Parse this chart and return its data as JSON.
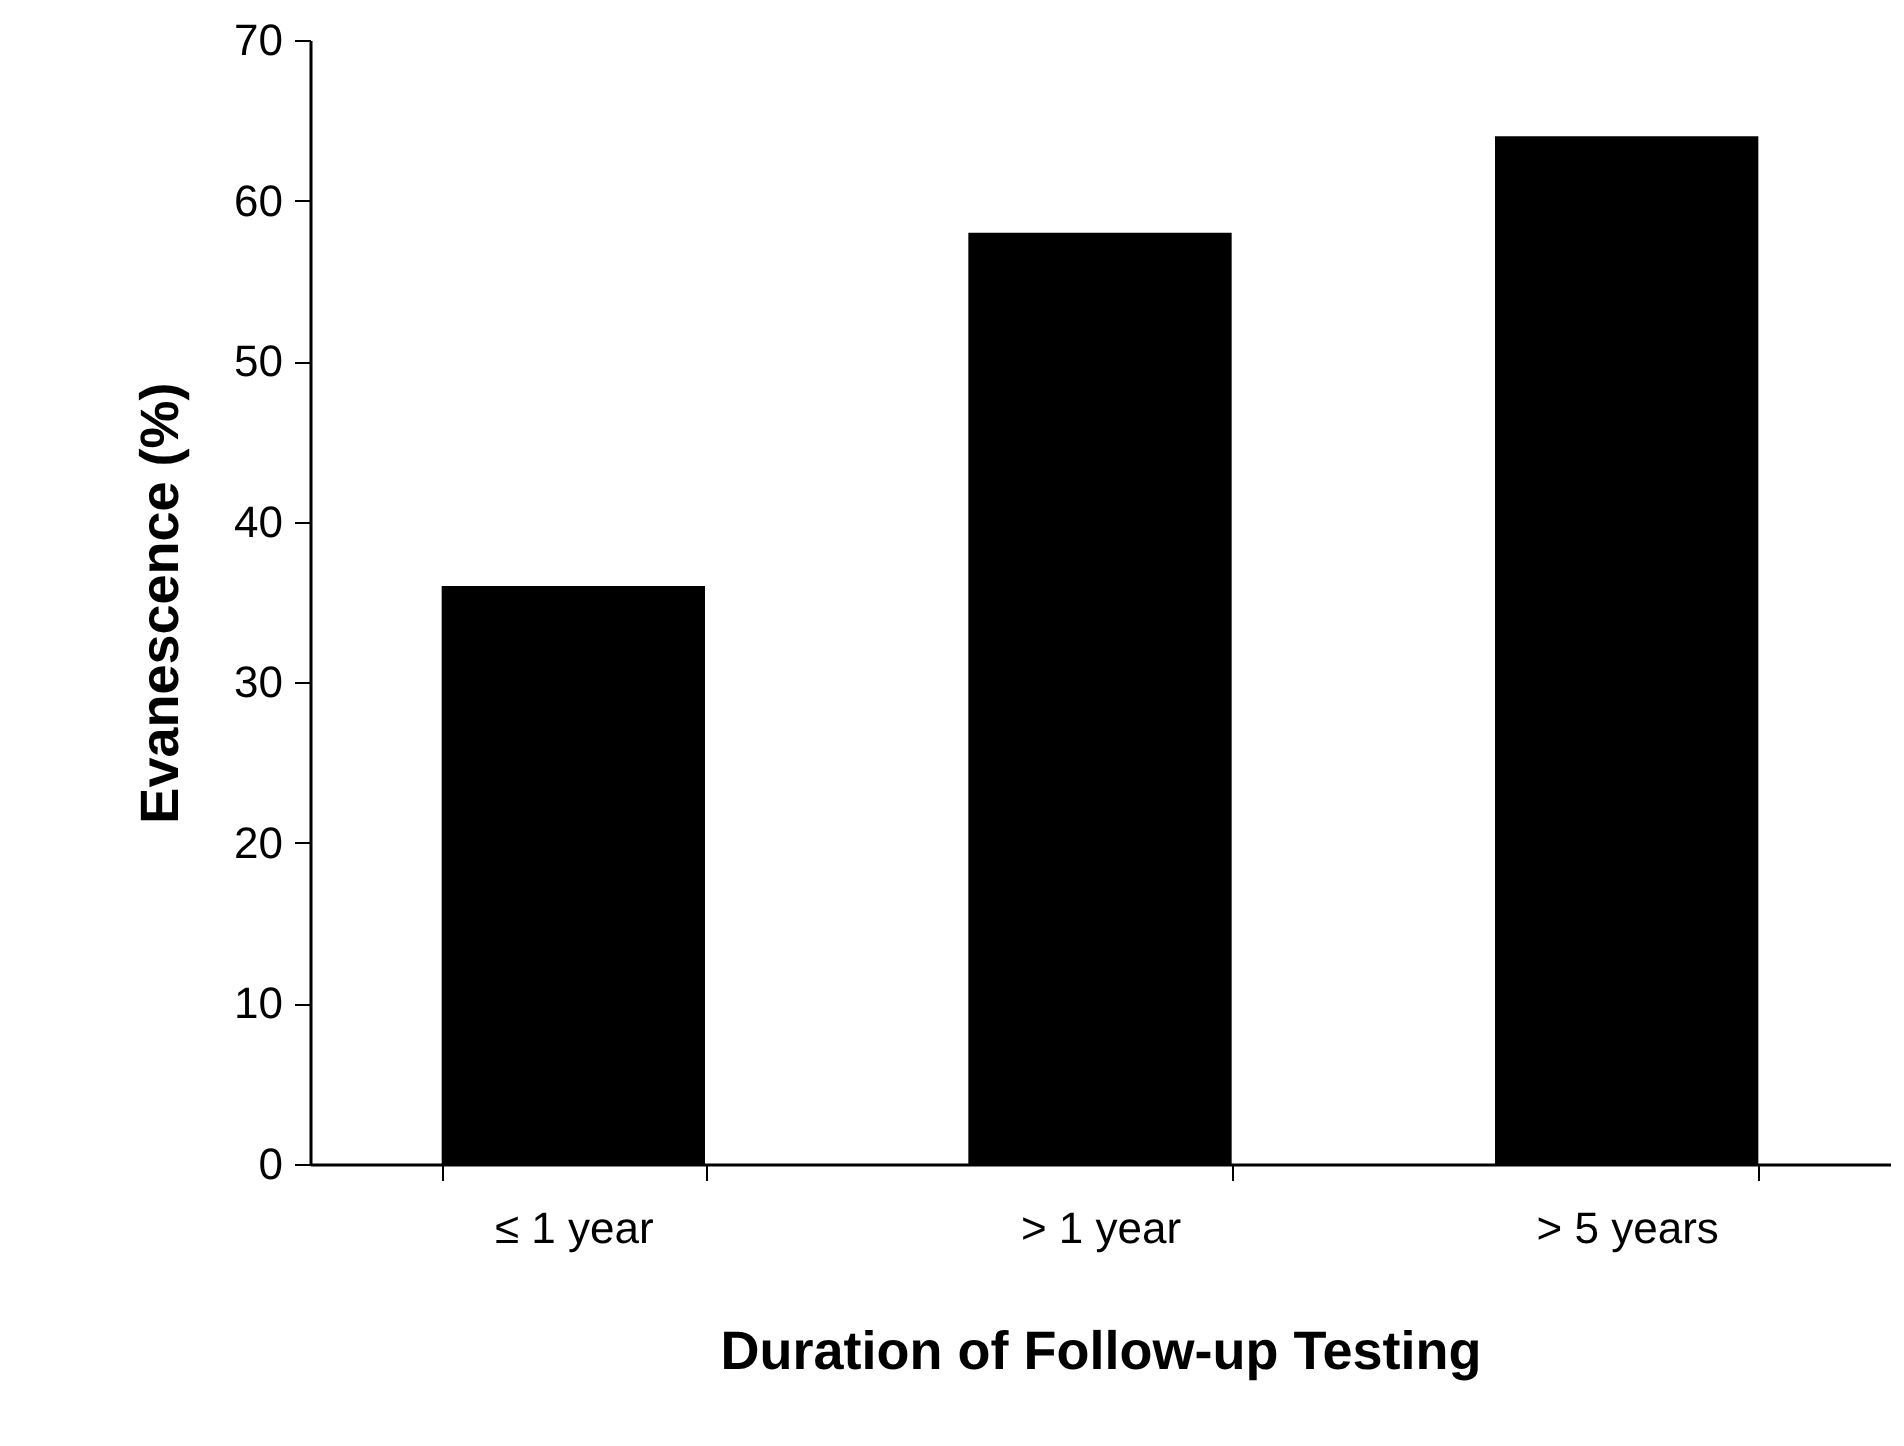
{
  "chart_data": {
    "type": "bar",
    "xlabel": "Duration of Follow-up Testing",
    "ylabel": "Evanescence (%)",
    "categories": [
      "≤ 1 year",
      "> 1 year",
      "> 5 years"
    ],
    "values": [
      36,
      58,
      64
    ],
    "color": "#000000",
    "ylim": [
      0,
      70
    ],
    "yticks": [
      0,
      10,
      20,
      30,
      40,
      50,
      60,
      70
    ],
    "grid": false
  }
}
